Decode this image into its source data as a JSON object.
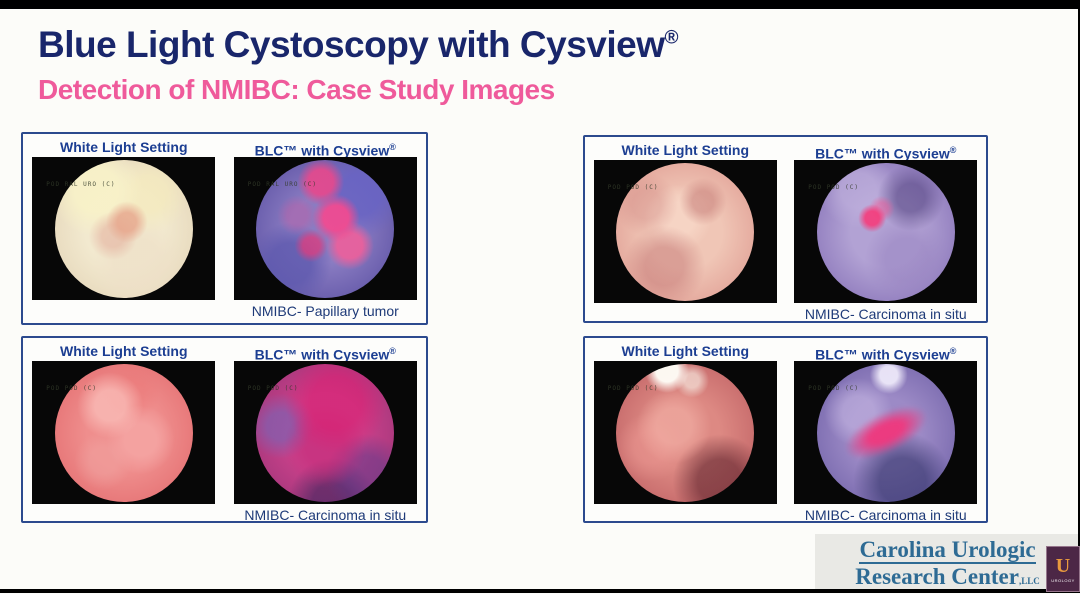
{
  "slide": {
    "title": "Blue Light Cystoscopy with Cysview",
    "title_sup": "®",
    "subtitle": "Detection of NMIBC: Case Study Images"
  },
  "panels": [
    {
      "position": "top-left",
      "left_header": "White Light Setting",
      "right_header": "BLC™ with Cysview",
      "right_header_sup": "®",
      "caption": "NMIBC- Papillary tumor",
      "left_overlay": "POD RAL URO (C)",
      "right_overlay": "POD RAL URO (C)"
    },
    {
      "position": "top-right",
      "left_header": "White Light Setting",
      "right_header": "BLC™ with Cysview",
      "right_header_sup": "®",
      "caption": "NMIBC- Carcinoma in situ",
      "left_overlay": "POD POD (C)",
      "right_overlay": "POD POD (C)"
    },
    {
      "position": "bottom-left",
      "left_header": "White Light Setting",
      "right_header": "BLC™ with Cysview",
      "right_header_sup": "®",
      "caption": "NMIBC- Carcinoma in situ",
      "left_overlay": "POD POD (C)",
      "right_overlay": "POD POD (C)"
    },
    {
      "position": "bottom-right",
      "left_header": "White Light Setting",
      "right_header": "BLC™ with Cysview",
      "right_header_sup": "®",
      "caption": "NMIBC- Carcinoma in situ",
      "left_overlay": "POD POD (C)",
      "right_overlay": "POD POD (C)"
    }
  ],
  "footer_logo": {
    "line1": "Carolina Urologic",
    "line2": "Research Center",
    "suffix": ",LLC",
    "badge_letter": "U",
    "badge_text": "UROLOGY"
  },
  "colors": {
    "title_navy": "#19266b",
    "subtitle_pink": "#ef5a9b",
    "panel_border_blue": "#2c4a8e",
    "panel_header_blue": "#1c3e92",
    "caption_blue": "#1e3a78",
    "logo_teal": "#2e6b94",
    "badge_plum": "#4c2746",
    "badge_orange": "#e89a3e"
  }
}
